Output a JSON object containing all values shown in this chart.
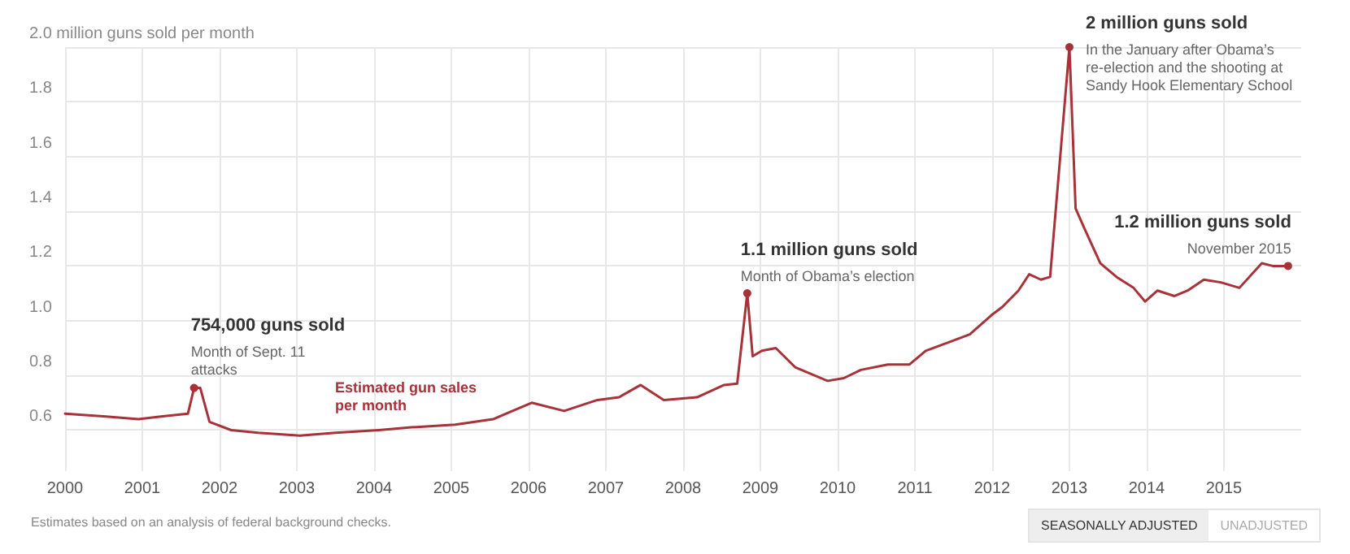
{
  "chart_data": {
    "type": "line",
    "x": [
      2000.0,
      2000.53,
      2000.95,
      2001.24,
      2001.59,
      2001.67,
      2001.75,
      2001.87,
      2002.15,
      2002.5,
      2003.04,
      2003.5,
      2004.06,
      2004.48,
      2005.05,
      2005.54,
      2006.04,
      2006.46,
      2006.89,
      2007.17,
      2007.45,
      2007.75,
      2008.18,
      2008.53,
      2008.7,
      2008.83,
      2008.9,
      2009.02,
      2009.2,
      2009.45,
      2009.87,
      2010.08,
      2010.3,
      2010.65,
      2010.93,
      2011.14,
      2011.43,
      2011.71,
      2011.99,
      2012.13,
      2012.34,
      2012.48,
      2012.63,
      2012.75,
      2013.0,
      2013.08,
      2013.19,
      2013.4,
      2013.61,
      2013.83,
      2013.98,
      2014.14,
      2014.36,
      2014.53,
      2014.74,
      2014.96,
      2015.2,
      2015.49,
      2015.63,
      2015.75,
      2015.83
    ],
    "series": [
      {
        "name": "Estimated gun sales\nper month",
        "color": "#a8323a",
        "values": [
          0.66,
          0.65,
          0.64,
          0.65,
          0.66,
          0.754,
          0.754,
          0.63,
          0.6,
          0.59,
          0.58,
          0.59,
          0.6,
          0.61,
          0.62,
          0.64,
          0.7,
          0.67,
          0.71,
          0.72,
          0.765,
          0.71,
          0.72,
          0.765,
          0.77,
          1.1,
          0.87,
          0.89,
          0.9,
          0.83,
          0.78,
          0.79,
          0.82,
          0.84,
          0.84,
          0.89,
          0.92,
          0.95,
          1.02,
          1.05,
          1.11,
          1.17,
          1.15,
          1.16,
          2.0,
          1.41,
          1.34,
          1.21,
          1.16,
          1.12,
          1.07,
          1.11,
          1.09,
          1.11,
          1.15,
          1.14,
          1.12,
          1.21,
          1.2,
          1.2,
          1.2
        ]
      }
    ],
    "xlim": [
      2000,
      2016
    ],
    "xticks": [
      2000,
      2001,
      2002,
      2003,
      2004,
      2005,
      2006,
      2007,
      2008,
      2009,
      2010,
      2011,
      2012,
      2013,
      2014,
      2015
    ],
    "ylim": [
      0.45,
      2.0
    ],
    "yticks": [
      0.6,
      0.8,
      {
        "value": 1.0,
        "label": "1.0"
      },
      1.2,
      1.4,
      1.6,
      1.8,
      {
        "value": 2.0,
        "label": "2.0 million guns sold per month"
      }
    ],
    "grid": true,
    "marker": "none",
    "line_style": "solid",
    "legend": false,
    "annotations": [
      {
        "text": "754,000 guns sold\nMonth of Sept. 11 attacks",
        "x": 2001.67,
        "y": 0.754
      },
      {
        "text": "1.1 million guns sold\nMonth of Obama’s election",
        "x": 2008.83,
        "y": 1.1
      },
      {
        "text": "2 million guns sold\nIn the January after Obama’s re-election and the shooting at Sandy Hook Elementary School",
        "x": 2013.0,
        "y": 2.0
      },
      {
        "text": "1.2 million guns sold\nNovember 2015",
        "x": 2015.83,
        "y": 1.2
      },
      "Estimates based on an analysis of federal background checks.",
      "SEASONALLY ADJUSTED",
      "UNADJUSTED"
    ]
  }
}
